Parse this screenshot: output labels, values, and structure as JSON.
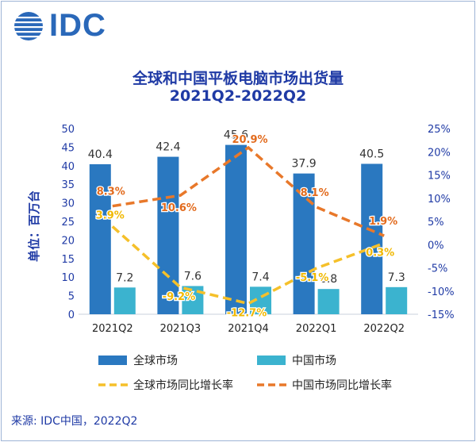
{
  "logo": {
    "text": "IDC"
  },
  "header": {
    "title": "全球和中国平板电脑市场出货量",
    "subtitle": "2021Q2-2022Q2"
  },
  "source": "来源: IDC中国，2022Q2",
  "colors": {
    "global_bar": "#2a78c0",
    "china_bar": "#3bb3cf",
    "global_yoy": "#f5c02a",
    "china_yoy": "#e8782a",
    "pct_label_global": "#f0b800",
    "pct_label_china": "#e26a1c",
    "axis_text": "#1f3aa5"
  },
  "chart_data": {
    "type": "bar",
    "categories": [
      "2021Q2",
      "2021Q3",
      "2021Q4",
      "2022Q1",
      "2022Q2"
    ],
    "ylabel": "单位：百万台",
    "ylim": [
      0,
      50
    ],
    "yticks": [
      "0",
      "5",
      "10",
      "15",
      "20",
      "25",
      "30",
      "35",
      "40",
      "45",
      "50"
    ],
    "y2lim": [
      -15,
      25
    ],
    "y2ticks": [
      "-15%",
      "-10%",
      "-5%",
      "0%",
      "5%",
      "10%",
      "15%",
      "20%",
      "25%"
    ],
    "grid": false,
    "legend_position": "bottom",
    "series": [
      {
        "name": "全球市场",
        "kind": "bar",
        "axis": "left",
        "values": [
          40.4,
          42.4,
          45.6,
          37.9,
          40.5
        ],
        "labels": [
          "40.4",
          "42.4",
          "45.6",
          "37.9",
          "40.5"
        ]
      },
      {
        "name": "中国市场",
        "kind": "bar",
        "axis": "left",
        "values": [
          7.2,
          7.6,
          7.4,
          6.8,
          7.3
        ],
        "labels": [
          "7.2",
          "7.6",
          "7.4",
          "6.8",
          "7.3"
        ]
      },
      {
        "name": "全球市场同比增长率",
        "kind": "line",
        "axis": "right",
        "values": [
          3.9,
          -9.2,
          -12.7,
          -5.1,
          0.3
        ],
        "labels": [
          "3.9%",
          "-9.2%",
          "-12.7%",
          "-5.1%",
          "0.3%"
        ]
      },
      {
        "name": "中国市场同比增长率",
        "kind": "line",
        "axis": "right",
        "values": [
          8.3,
          10.6,
          20.9,
          8.1,
          1.9
        ],
        "labels": [
          "8.3%",
          "10.6%",
          "20.9%",
          "8.1%",
          "1.9%"
        ]
      }
    ]
  }
}
